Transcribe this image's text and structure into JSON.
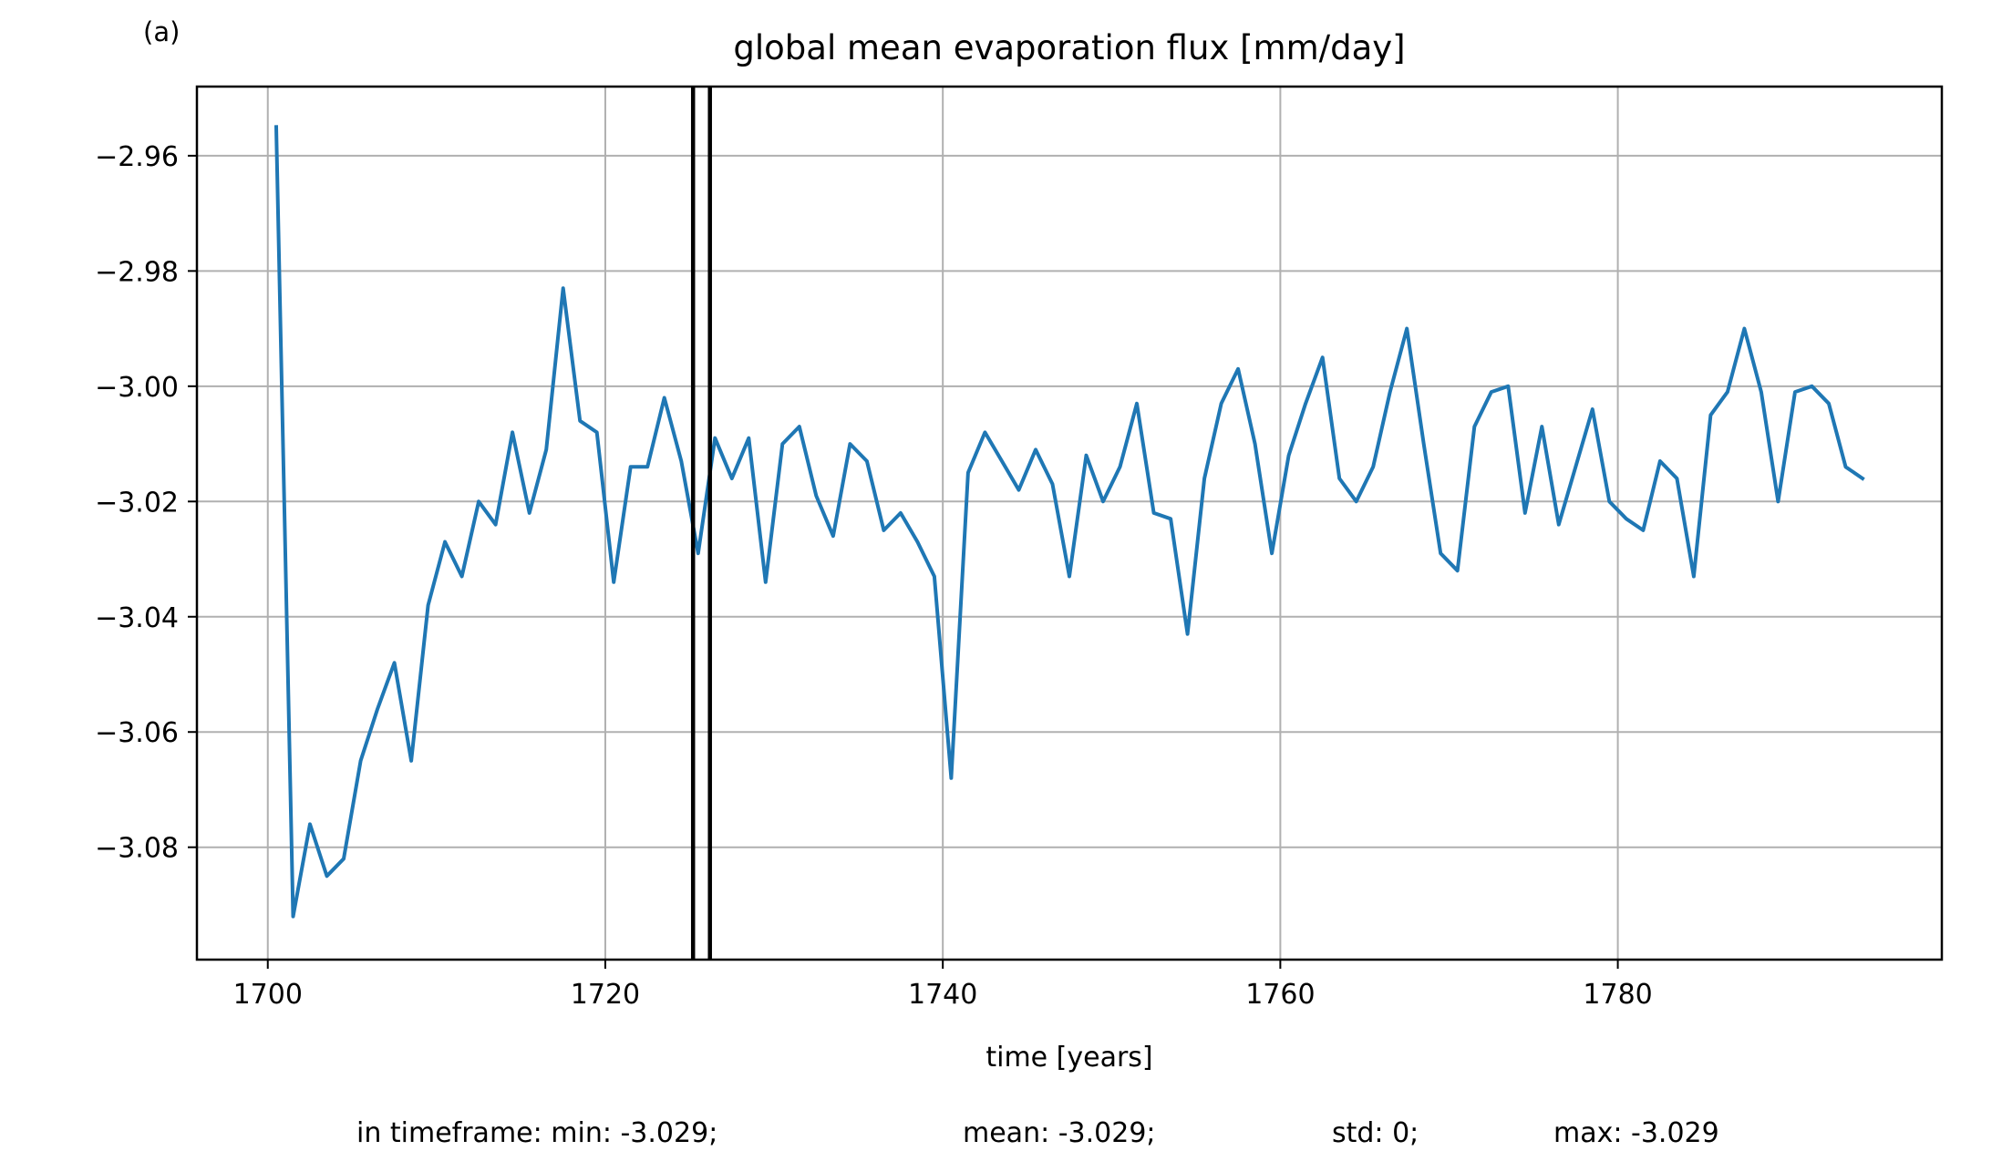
{
  "panel_label": "(a)",
  "stats": {
    "min_label": "in timeframe: min: -3.029;",
    "mean_label": "mean: -3.029;",
    "std_label": "std: 0;",
    "max_label": "max: -3.029"
  },
  "chart_data": {
    "type": "line",
    "title": "global mean evaporation flux [mm/day]",
    "xlabel": "time [years]",
    "ylabel": "",
    "xlim": [
      1695.8,
      1799.2
    ],
    "ylim": [
      -3.0995,
      -2.948
    ],
    "xticks": [
      1700,
      1720,
      1740,
      1760,
      1780
    ],
    "yticks": [
      -3.08,
      -3.06,
      -3.04,
      -3.02,
      -3.0,
      -2.98,
      -2.96
    ],
    "ytick_labels": [
      "−3.08",
      "−3.06",
      "−3.04",
      "−3.02",
      "−3.00",
      "−2.98",
      "−2.96"
    ],
    "grid": true,
    "series": [
      {
        "color": "#1f77b4",
        "x": [
          1700.5,
          1701.5,
          1702.5,
          1703.5,
          1704.5,
          1705.5,
          1706.5,
          1707.5,
          1708.5,
          1709.5,
          1710.5,
          1711.5,
          1712.5,
          1713.5,
          1714.5,
          1715.5,
          1716.5,
          1717.5,
          1718.5,
          1719.5,
          1720.5,
          1721.5,
          1722.5,
          1723.5,
          1724.5,
          1725.5,
          1726.5,
          1727.5,
          1728.5,
          1729.5,
          1730.5,
          1731.5,
          1732.5,
          1733.5,
          1734.5,
          1735.5,
          1736.5,
          1737.5,
          1738.5,
          1739.5,
          1740.5,
          1741.5,
          1742.5,
          1743.5,
          1744.5,
          1745.5,
          1746.5,
          1747.5,
          1748.5,
          1749.5,
          1750.5,
          1751.5,
          1752.5,
          1753.5,
          1754.5,
          1755.5,
          1756.5,
          1757.5,
          1758.5,
          1759.5,
          1760.5,
          1761.5,
          1762.5,
          1763.5,
          1764.5,
          1765.5,
          1766.5,
          1767.5,
          1768.5,
          1769.5,
          1770.5,
          1771.5,
          1772.5,
          1773.5,
          1774.5,
          1775.5,
          1776.5,
          1777.5,
          1778.5,
          1779.5,
          1780.5,
          1781.5,
          1782.5,
          1783.5,
          1784.5,
          1785.5,
          1786.5,
          1787.5,
          1788.5,
          1789.5,
          1790.5,
          1791.5,
          1792.5,
          1793.5,
          1794.5
        ],
        "y": [
          -2.955,
          -3.092,
          -3.076,
          -3.085,
          -3.082,
          -3.065,
          -3.056,
          -3.048,
          -3.065,
          -3.038,
          -3.027,
          -3.033,
          -3.02,
          -3.024,
          -3.008,
          -3.022,
          -3.011,
          -2.983,
          -3.006,
          -3.008,
          -3.034,
          -3.014,
          -3.014,
          -3.002,
          -3.013,
          -3.029,
          -3.009,
          -3.016,
          -3.009,
          -3.034,
          -3.01,
          -3.007,
          -3.019,
          -3.026,
          -3.01,
          -3.013,
          -3.025,
          -3.022,
          -3.027,
          -3.033,
          -3.068,
          -3.015,
          -3.008,
          -3.013,
          -3.018,
          -3.011,
          -3.017,
          -3.033,
          -3.012,
          -3.02,
          -3.014,
          -3.003,
          -3.022,
          -3.023,
          -3.043,
          -3.016,
          -3.003,
          -2.997,
          -3.01,
          -3.029,
          -3.012,
          -3.003,
          -2.995,
          -3.016,
          -3.02,
          -3.014,
          -3.001,
          -2.99,
          -3.01,
          -3.029,
          -3.032,
          -3.007,
          -3.001,
          -3.0,
          -3.022,
          -3.007,
          -3.024,
          -3.014,
          -3.004,
          -3.02,
          -3.023,
          -3.025,
          -3.013,
          -3.016,
          -3.033,
          -3.005,
          -3.001,
          -2.99,
          -3.001,
          -3.02,
          -3.001,
          -3.0,
          -3.003,
          -3.014,
          -3.016
        ]
      }
    ],
    "vlines": [
      1725.2,
      1726.2
    ],
    "vline_color": "#000000"
  }
}
